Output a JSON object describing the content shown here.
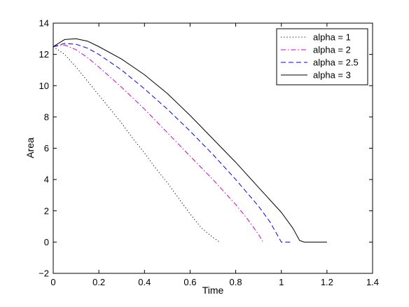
{
  "chart_data": {
    "type": "line",
    "title": "",
    "xlabel": "Time",
    "ylabel": "Area",
    "xlim": [
      0,
      1.4
    ],
    "ylim": [
      -2,
      14
    ],
    "xticks": [
      "0",
      "0.2",
      "0.4",
      "0.6",
      "0.8",
      "1",
      "1.2",
      "1.4"
    ],
    "yticks": [
      "−2",
      "0",
      "2",
      "4",
      "6",
      "8",
      "10",
      "12",
      "14"
    ],
    "grid": false,
    "legend_position": "top-right",
    "series": [
      {
        "name": "alpha = 1",
        "color": "#000000",
        "style": "dotted",
        "x": [
          0,
          0.05,
          0.1,
          0.15,
          0.2,
          0.25,
          0.3,
          0.35,
          0.4,
          0.45,
          0.5,
          0.55,
          0.6,
          0.65,
          0.7,
          0.73
        ],
        "y": [
          12.5,
          12.0,
          11.2,
          10.3,
          9.4,
          8.5,
          7.6,
          6.6,
          5.7,
          4.7,
          3.8,
          2.8,
          1.8,
          0.9,
          0.3,
          0.0
        ]
      },
      {
        "name": "alpha = 2",
        "color": "#cc00cc",
        "style": "dashdot",
        "x": [
          0,
          0.05,
          0.1,
          0.15,
          0.2,
          0.3,
          0.4,
          0.5,
          0.6,
          0.7,
          0.8,
          0.85,
          0.9,
          0.92
        ],
        "y": [
          12.5,
          12.6,
          12.3,
          11.8,
          11.2,
          9.9,
          8.5,
          7.0,
          5.5,
          4.0,
          2.4,
          1.5,
          0.5,
          0.0
        ]
      },
      {
        "name": "alpha = 2.5",
        "color": "#0000ff",
        "style": "dashed",
        "x": [
          0,
          0.05,
          0.1,
          0.15,
          0.2,
          0.3,
          0.4,
          0.5,
          0.6,
          0.7,
          0.8,
          0.9,
          0.95,
          1.0,
          1.05
        ],
        "y": [
          12.5,
          12.7,
          12.65,
          12.4,
          12.0,
          11.0,
          9.8,
          8.5,
          7.1,
          5.6,
          4.0,
          2.3,
          1.3,
          0.0,
          0.0
        ]
      },
      {
        "name": "alpha = 3",
        "color": "#000000",
        "style": "solid",
        "x": [
          0,
          0.05,
          0.1,
          0.15,
          0.2,
          0.3,
          0.4,
          0.5,
          0.6,
          0.7,
          0.8,
          0.9,
          1.0,
          1.05,
          1.08,
          1.1,
          1.2
        ],
        "y": [
          12.5,
          12.95,
          13.0,
          12.85,
          12.5,
          11.7,
          10.7,
          9.5,
          8.1,
          6.6,
          5.1,
          3.5,
          1.9,
          0.9,
          0.1,
          0.0,
          0.0
        ]
      }
    ]
  }
}
